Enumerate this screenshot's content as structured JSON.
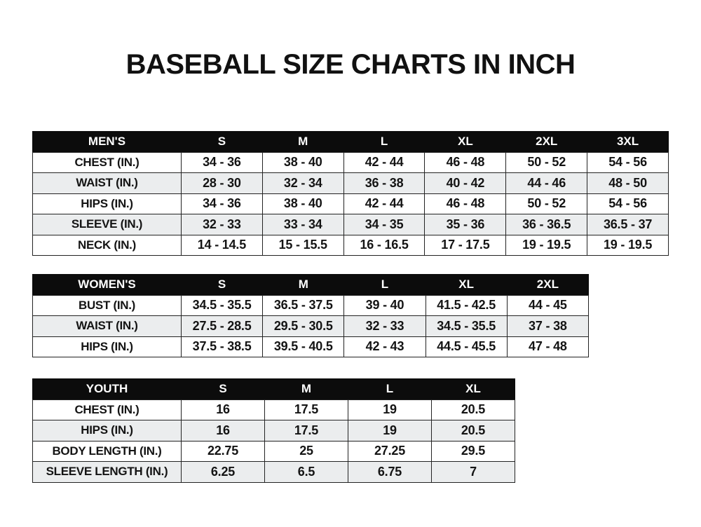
{
  "page": {
    "title": "BASEBALL SIZE CHARTS IN INCH"
  },
  "colors": {
    "page_bg": "#ffffff",
    "header_bg": "#0c0c0c",
    "header_text": "#ffffff",
    "row_bg": "#ffffff",
    "row_alt_bg": "#ebedee",
    "border": "#232323",
    "text": "#141414"
  },
  "tables": [
    {
      "name": "mens",
      "header": [
        "MEN'S",
        "S",
        "M",
        "L",
        "XL",
        "2XL",
        "3XL"
      ],
      "rows": [
        [
          "CHEST (IN.)",
          "34 - 36",
          "38 - 40",
          "42 - 44",
          "46 - 48",
          "50 - 52",
          "54 - 56"
        ],
        [
          "WAIST (IN.)",
          "28 - 30",
          "32 - 34",
          "36 - 38",
          "40 - 42",
          "44 - 46",
          "48 - 50"
        ],
        [
          "HIPS (IN.)",
          "34 - 36",
          "38 - 40",
          "42 - 44",
          "46 - 48",
          "50 - 52",
          "54 - 56"
        ],
        [
          "SLEEVE (IN.)",
          "32 - 33",
          "33 - 34",
          "34 - 35",
          "35 - 36",
          "36 - 36.5",
          "36.5 - 37"
        ],
        [
          "NECK (IN.)",
          "14 - 14.5",
          "15 - 15.5",
          "16 - 16.5",
          "17 - 17.5",
          "19 - 19.5",
          "19 - 19.5"
        ]
      ]
    },
    {
      "name": "womens",
      "header": [
        "WOMEN'S",
        "S",
        "M",
        "L",
        "XL",
        "2XL"
      ],
      "rows": [
        [
          "BUST (IN.)",
          "34.5 - 35.5",
          "36.5 - 37.5",
          "39 - 40",
          "41.5 - 42.5",
          "44 - 45"
        ],
        [
          "WAIST (IN.)",
          "27.5 - 28.5",
          "29.5 - 30.5",
          "32 - 33",
          "34.5 - 35.5",
          "37 - 38"
        ],
        [
          "HIPS (IN.)",
          "37.5 - 38.5",
          "39.5 - 40.5",
          "42 - 43",
          "44.5 - 45.5",
          "47 - 48"
        ]
      ]
    },
    {
      "name": "youth",
      "header": [
        "YOUTH",
        "S",
        "M",
        "L",
        "XL"
      ],
      "rows": [
        [
          "CHEST (IN.)",
          "16",
          "17.5",
          "19",
          "20.5"
        ],
        [
          "HIPS (IN.)",
          "16",
          "17.5",
          "19",
          "20.5"
        ],
        [
          "BODY LENGTH (IN.)",
          "22.75",
          "25",
          "27.25",
          "29.5"
        ],
        [
          "SLEEVE LENGTH (IN.)",
          "6.25",
          "6.5",
          "6.75",
          "7"
        ]
      ]
    }
  ]
}
